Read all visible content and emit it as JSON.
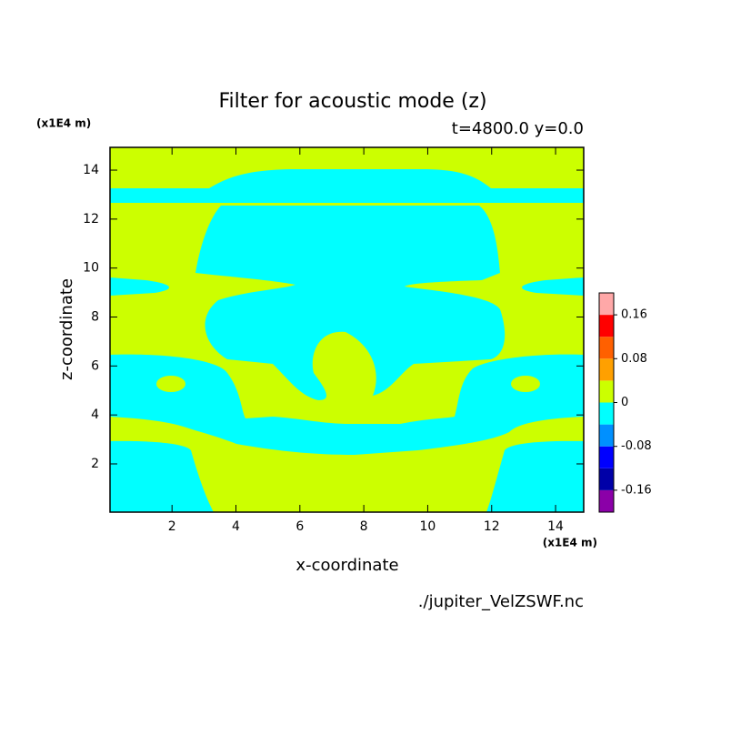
{
  "chart_data": {
    "type": "contour",
    "title": "Filter for acoustic mode (z)",
    "subtitle": "t=4800.0 y=0.0",
    "x_label": "x-coordinate",
    "y_label": "z-coordinate",
    "x_unit": "(x1E4 m)",
    "y_unit": "(x1E4 m)",
    "source": "./jupiter_VelZSWF.nc",
    "xlim": [
      0.06,
      14.88
    ],
    "ylim": [
      0.03,
      14.93
    ],
    "xticks": [
      2,
      4,
      6,
      8,
      10,
      12,
      14
    ],
    "yticks": [
      2,
      4,
      6,
      8,
      10,
      12,
      14
    ],
    "colorbar": {
      "levels": [
        -0.2,
        -0.16,
        -0.12,
        -0.08,
        -0.04,
        0,
        0.04,
        0.08,
        0.12,
        0.16,
        0.2
      ],
      "colors": [
        "#8b00a8",
        "#0000a8",
        "#0000ff",
        "#0090ff",
        "#00ffff",
        "#ccff00",
        "#ffa000",
        "#ff6000",
        "#ff0000",
        "#ffa8a8"
      ],
      "ticks": [
        -0.16,
        -0.08,
        0,
        0.08,
        0.16
      ]
    }
  }
}
